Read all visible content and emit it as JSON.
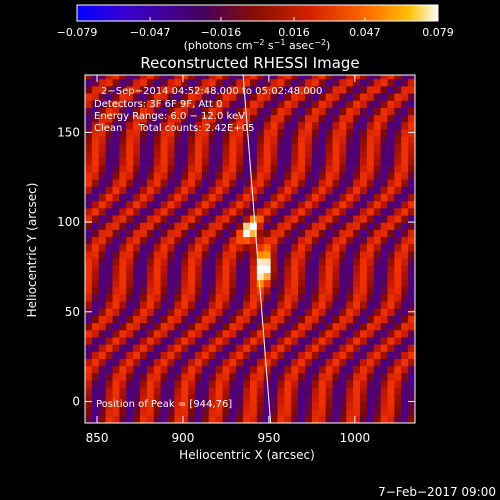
{
  "chart_data": {
    "type": "heatmap",
    "title": "Reconstructed RHESSI Image",
    "xlabel": "Heliocentric X (arcsec)",
    "ylabel": "Heliocentric Y (arcsec)",
    "xlim": [
      843,
      1035
    ],
    "ylim": [
      -12,
      182
    ],
    "xticks": [
      850,
      900,
      950,
      1000
    ],
    "yticks": [
      0,
      50,
      100,
      150
    ],
    "colorbar": {
      "range": [
        -0.079,
        0.079
      ],
      "tick_values": [
        -0.079,
        -0.047,
        -0.016,
        0.016,
        0.047,
        0.079
      ],
      "tick_labels": [
        "−0.079",
        "−0.047",
        "−0.016",
        "0.016",
        "0.047",
        "0.079"
      ],
      "unit_text": "(photons cm",
      "unit_sup1": "−2",
      "unit_mid": " s",
      "unit_sup2": "−1",
      "unit_mid2": " asec",
      "unit_sup3": "−2",
      "unit_end": ")"
    },
    "info_lines": [
      "2−Sep−2014 04:52:48.000 to 05:02:48.000",
      "Detectors: 3F 6F 9F, Att 0",
      "Energy Range: 6.0 − 12.0 keV",
      "Clean     Total counts: 2.42E+05"
    ],
    "peak_label": "Position of Peak = [944,76]",
    "peak": {
      "x": 944,
      "y": 76
    },
    "sources": [
      {
        "x": 940,
        "y": 94,
        "amp": 0.079
      },
      {
        "x": 948,
        "y": 74,
        "amp": 0.075
      }
    ],
    "limb_line": [
      {
        "x": 935,
        "y": 182
      },
      {
        "x": 951,
        "y": -12
      }
    ],
    "timestamp": "7−Feb−2017 09:00",
    "colors": {
      "background": "#000000",
      "cmap": [
        "#0000ff",
        "#4a00c0",
        "#4d0076",
        "#7f0b00",
        "#c81800",
        "#ff3b00",
        "#ff9a00",
        "#ffffff"
      ]
    }
  }
}
